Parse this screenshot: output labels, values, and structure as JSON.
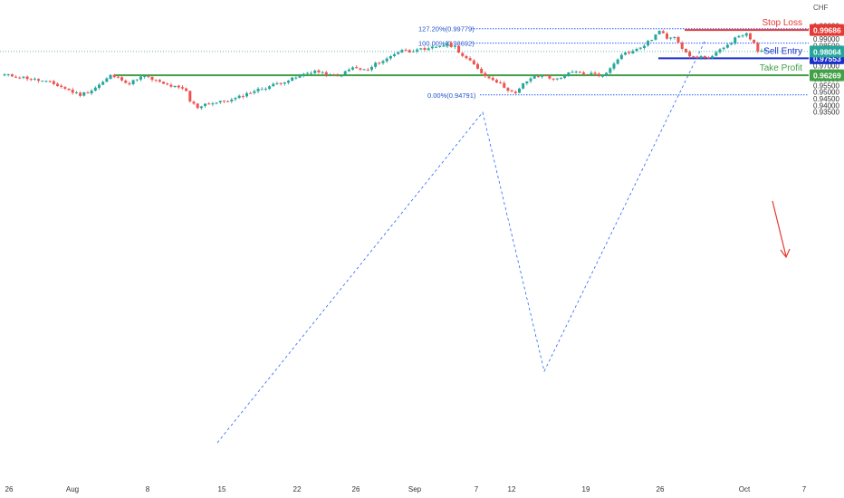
{
  "chart_data": {
    "type": "candlestick",
    "title": "",
    "currency_label": "CHF",
    "ylim": [
      0.931,
      1.0035
    ],
    "y_ticks": [
      "1.00000",
      "0.99500",
      "0.99000",
      "0.98500",
      "0.98000",
      "0.97500",
      "0.97000",
      "0.96500",
      "0.96000",
      "0.95500",
      "0.95000",
      "0.94500",
      "0.94000",
      "0.93500"
    ],
    "x_ticks": [
      "26",
      "Aug",
      "8",
      "15",
      "22",
      "26",
      "Sep",
      "7",
      "12",
      "19",
      "26",
      "Oct",
      "7"
    ],
    "levels": [
      {
        "name": "Stop Loss",
        "value": 0.99686,
        "value_label": "0.99686",
        "color": "#e53935",
        "label_color": "#e53935"
      },
      {
        "name": "Sell Entry",
        "value": 0.97553,
        "value_label": "0.97553",
        "color": "#1a2fcc",
        "label_color": "#1a2fcc"
      },
      {
        "name": "Take Profit",
        "value": 0.96269,
        "value_label": "0.96269",
        "color": "#43a047",
        "label_color": "#43a047"
      }
    ],
    "current_price": {
      "value": 0.98064,
      "value_label": "0.98064",
      "color": "#26a69a"
    },
    "fibonacci": [
      {
        "label": "127.20%(0.99779)",
        "value": 0.99779
      },
      {
        "label": "100.00%(0.98692)",
        "value": 0.98692
      },
      {
        "label": "0.00%(0.94791)",
        "value": 0.94791
      }
    ],
    "colors": {
      "up": "#26a69a",
      "down": "#ef5350",
      "grid_text": "#555555",
      "fib_line": "#2962ff"
    },
    "anchors": [
      [
        0,
        0.963
      ],
      [
        4,
        0.9615
      ],
      [
        8,
        0.9595
      ],
      [
        12,
        0.957
      ],
      [
        15,
        0.954
      ],
      [
        18,
        0.95
      ],
      [
        20,
        0.948
      ],
      [
        23,
        0.9515
      ],
      [
        26,
        0.9575
      ],
      [
        28,
        0.9625
      ],
      [
        31,
        0.9598
      ],
      [
        33,
        0.956
      ],
      [
        35,
        0.9605
      ],
      [
        37,
        0.9618
      ],
      [
        39,
        0.9595
      ],
      [
        42,
        0.956
      ],
      [
        45,
        0.9538
      ],
      [
        47,
        0.952
      ],
      [
        48,
        0.9505
      ],
      [
        49,
        0.943
      ],
      [
        51,
        0.9385
      ],
      [
        53,
        0.9412
      ],
      [
        56,
        0.942
      ],
      [
        60,
        0.944
      ],
      [
        63,
        0.9475
      ],
      [
        66,
        0.951
      ],
      [
        69,
        0.9535
      ],
      [
        72,
        0.9565
      ],
      [
        75,
        0.959
      ],
      [
        77,
        0.961
      ],
      [
        80,
        0.9645
      ],
      [
        82,
        0.966
      ],
      [
        84,
        0.964
      ],
      [
        86,
        0.9625
      ],
      [
        88,
        0.9618
      ],
      [
        90,
        0.965
      ],
      [
        92,
        0.9685
      ],
      [
        94,
        0.967
      ],
      [
        96,
        0.9665
      ],
      [
        98,
        0.9712
      ],
      [
        101,
        0.975
      ],
      [
        103,
        0.979
      ],
      [
        105,
        0.982
      ],
      [
        107,
        0.9805
      ],
      [
        109,
        0.983
      ],
      [
        111,
        0.981
      ],
      [
        113,
        0.9835
      ],
      [
        115,
        0.985
      ],
      [
        117,
        0.9858
      ],
      [
        119,
        0.9842
      ],
      [
        121,
        0.9775
      ],
      [
        123,
        0.973
      ],
      [
        125,
        0.968
      ],
      [
        127,
        0.962
      ],
      [
        129,
        0.96
      ],
      [
        131,
        0.956
      ],
      [
        133,
        0.952
      ],
      [
        135,
        0.9485
      ],
      [
        137,
        0.956
      ],
      [
        139,
        0.9605
      ],
      [
        141,
        0.962
      ],
      [
        143,
        0.963
      ],
      [
        145,
        0.959
      ],
      [
        147,
        0.9615
      ],
      [
        149,
        0.964
      ],
      [
        151,
        0.965
      ],
      [
        153,
        0.9635
      ],
      [
        155,
        0.964
      ],
      [
        157,
        0.9625
      ],
      [
        159,
        0.964
      ],
      [
        161,
        0.972
      ],
      [
        163,
        0.979
      ],
      [
        165,
        0.98
      ],
      [
        167,
        0.982
      ],
      [
        169,
        0.9855
      ],
      [
        171,
        0.99
      ],
      [
        173,
        0.996
      ],
      [
        175,
        0.991
      ],
      [
        177,
        0.9925
      ],
      [
        178,
        0.988
      ],
      [
        180,
        0.979
      ],
      [
        182,
        0.976
      ],
      [
        184,
        0.977
      ],
      [
        186,
        0.9745
      ],
      [
        188,
        0.979
      ],
      [
        190,
        0.9845
      ],
      [
        192,
        0.9875
      ],
      [
        194,
        0.993
      ],
      [
        196,
        0.9935
      ],
      [
        197,
        0.989
      ],
      [
        198,
        0.9865
      ],
      [
        199,
        0.981
      ],
      [
        201,
        0.9806
      ]
    ]
  }
}
